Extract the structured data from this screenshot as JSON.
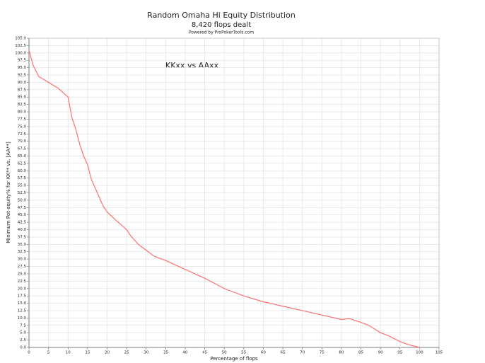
{
  "chart_data": {
    "type": "line",
    "title": "Random Omaha Hi Equity Distribution",
    "subtitle": "8,420 flops dealt",
    "credit": "Powered by ProPokerTools.com",
    "annotation": "KKxx vs AAxx",
    "xlabel": "Percentage of flops",
    "ylabel": "Minimum Pot equity% for KK** vs. [AA**]",
    "grid": true,
    "xlim": [
      0,
      105
    ],
    "ylim": [
      0,
      105
    ],
    "xticks": [
      0,
      5,
      10,
      15,
      20,
      25,
      30,
      35,
      40,
      45,
      50,
      55,
      60,
      65,
      70,
      75,
      80,
      85,
      90,
      95,
      100,
      105
    ],
    "yticks": [
      {
        "value": 0,
        "label": "0.0"
      },
      {
        "value": 2.5,
        "label": "2.5"
      },
      {
        "value": 5,
        "label": "5.0"
      },
      {
        "value": 7.5,
        "label": "7.5"
      },
      {
        "value": 10,
        "label": "10.0"
      },
      {
        "value": 12.5,
        "label": "12.5"
      },
      {
        "value": 15,
        "label": "15.0"
      },
      {
        "value": 17.5,
        "label": "17.5"
      },
      {
        "value": 20,
        "label": "20.0"
      },
      {
        "value": 22.5,
        "label": "22.5"
      },
      {
        "value": 25,
        "label": "25.0"
      },
      {
        "value": 27.5,
        "label": "27.5"
      },
      {
        "value": 30,
        "label": "30.0"
      },
      {
        "value": 32.5,
        "label": "32.5"
      },
      {
        "value": 35,
        "label": "35.0"
      },
      {
        "value": 37.5,
        "label": "37.5"
      },
      {
        "value": 40,
        "label": "40.0"
      },
      {
        "value": 42.5,
        "label": "42.5"
      },
      {
        "value": 45,
        "label": "45.0"
      },
      {
        "value": 47.5,
        "label": "47.5"
      },
      {
        "value": 50,
        "label": "50.0"
      },
      {
        "value": 52.5,
        "label": "52.5"
      },
      {
        "value": 55,
        "label": "55.0"
      },
      {
        "value": 57.5,
        "label": "57.5"
      },
      {
        "value": 60,
        "label": "60.0"
      },
      {
        "value": 62.5,
        "label": "62.5"
      },
      {
        "value": 65,
        "label": "65.0"
      },
      {
        "value": 67.5,
        "label": "67.5"
      },
      {
        "value": 70,
        "label": "70.0"
      },
      {
        "value": 72.5,
        "label": "72.5"
      },
      {
        "value": 75,
        "label": "75.0"
      },
      {
        "value": 77.5,
        "label": "77.5"
      },
      {
        "value": 80,
        "label": "80.0"
      },
      {
        "value": 82.5,
        "label": "82.5"
      },
      {
        "value": 85,
        "label": "85.0"
      },
      {
        "value": 87.5,
        "label": "87.5"
      },
      {
        "value": 90,
        "label": "90.0"
      },
      {
        "value": 92.5,
        "label": "92.5"
      },
      {
        "value": 95,
        "label": "95.0"
      },
      {
        "value": 97.5,
        "label": "97.5"
      },
      {
        "value": 100,
        "label": "100.0"
      },
      {
        "value": 102.5,
        "label": "102.5"
      },
      {
        "value": 105,
        "label": "105.0"
      }
    ],
    "x": [
      0,
      1,
      2.5,
      5,
      7.5,
      10,
      11,
      12,
      13,
      14,
      15,
      16,
      17,
      18,
      19,
      20,
      22,
      25,
      26,
      28,
      30,
      32,
      35,
      40,
      45,
      50,
      55,
      60,
      65,
      70,
      75,
      80,
      82,
      85,
      87,
      90,
      92,
      95,
      97,
      100
    ],
    "series": [
      {
        "color": "#ff6f6f",
        "values": [
          101,
          96,
          92,
          90,
          88,
          85,
          78,
          74,
          69,
          65,
          62,
          57,
          54,
          51,
          48,
          46,
          43.5,
          40,
          38,
          35,
          33,
          31,
          29.5,
          26.5,
          23.5,
          20,
          17.5,
          15.5,
          14,
          12.5,
          11,
          9.5,
          9.8,
          8.5,
          7.5,
          5,
          4,
          2,
          1,
          0
        ]
      }
    ]
  }
}
